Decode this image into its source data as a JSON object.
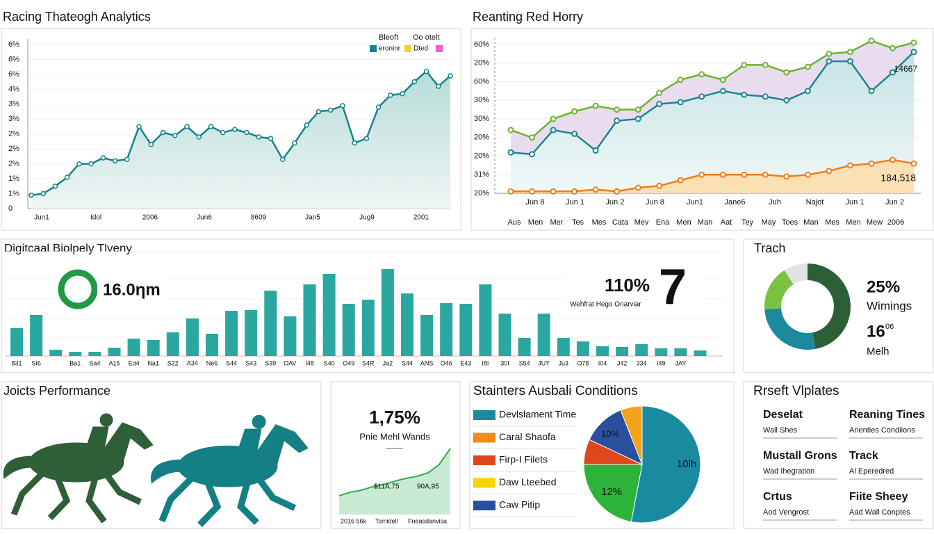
{
  "chart_data": [
    {
      "type": "line",
      "title": "Racing Thateogh Analytics",
      "legend_titles": [
        "Bleoft",
        "Oo otelt"
      ],
      "legend": [
        {
          "name": "eroninr",
          "color": "#14838c"
        },
        {
          "name": "Dted",
          "color": "#f2d61c"
        }
      ],
      "legend_extra_color": "#f25ccd",
      "y_labels": [
        "6%",
        "6%",
        "6%",
        "4%",
        "3%",
        "3%",
        "2%",
        "2%",
        "2%",
        "1%",
        "1%",
        "0"
      ],
      "x_labels": [
        "Jun1",
        "Idol",
        "2006",
        "Jun6",
        "8609",
        "Jan5",
        "Jug9",
        "2001"
      ],
      "ylim": [
        0,
        11
      ],
      "color": "#14838c",
      "values": [
        0.9,
        1.0,
        1.5,
        2.1,
        3.0,
        3.0,
        3.4,
        3.2,
        3.3,
        5.5,
        4.3,
        5.1,
        4.9,
        5.5,
        4.8,
        5.5,
        5.1,
        5.3,
        5.1,
        4.8,
        4.7,
        3.3,
        4.4,
        5.6,
        6.5,
        6.6,
        6.9,
        4.4,
        4.7,
        6.8,
        7.6,
        7.7,
        8.5,
        9.2,
        8.2,
        8.9
      ]
    },
    {
      "type": "multiline",
      "title": "Reanting Red Horry",
      "y_labels": [
        "60%",
        "20%",
        "60%",
        "30%",
        "30%",
        "20%",
        "20%",
        "31%",
        "20%"
      ],
      "x_labels": [
        "Jun 8",
        "Jun 1",
        "Jun 2",
        "Jun 8",
        "Jun1",
        "Jane6",
        "Juh",
        "Najot",
        "Jun 1",
        "Jun 2"
      ],
      "x_labels_2": [
        "Aus",
        "Men",
        "Mer",
        "Tes",
        "Mes",
        "Cata",
        "Mev",
        "Ena",
        "Men",
        "Man",
        "Aat",
        "Tey",
        "May",
        "Toes",
        "Man",
        "Mes",
        "Men",
        "Mew",
        "2006"
      ],
      "ylim": [
        0,
        8
      ],
      "series": [
        {
          "color": "#6ab42d",
          "values": [
            3.4,
            3.0,
            4.0,
            4.4,
            4.7,
            4.5,
            4.5,
            5.4,
            6.1,
            6.4,
            6.1,
            6.9,
            6.9,
            6.5,
            6.8,
            7.5,
            7.6,
            8.2,
            7.8,
            8.1
          ]
        },
        {
          "color": "#1a8593",
          "values": [
            2.2,
            2.1,
            3.4,
            3.2,
            2.3,
            3.9,
            4.0,
            4.8,
            4.9,
            5.2,
            5.5,
            5.3,
            5.2,
            5.0,
            5.5,
            7.1,
            7.1,
            5.5,
            6.5,
            7.6
          ]
        },
        {
          "color": "#ee7d1a",
          "values": [
            0.1,
            0.1,
            0.1,
            0.1,
            0.2,
            0.1,
            0.3,
            0.4,
            0.7,
            1.0,
            1.0,
            1.0,
            1.0,
            0.9,
            1.0,
            1.2,
            1.5,
            1.6,
            1.8,
            1.6
          ]
        }
      ],
      "annotations": [
        "14667",
        "184,518"
      ]
    },
    {
      "type": "bar",
      "title": "Digitcaal Biolpely Tlveny",
      "categories": [
        "831",
        "St6",
        null,
        "Ba1",
        "Sa4",
        "A15",
        "Ed4",
        "Na1",
        "S22",
        "A34",
        "Ne6",
        "S44",
        "S43",
        "S39",
        "OAV",
        "I48",
        "S40",
        "O49",
        "S4R",
        "Ja2",
        "S44",
        "ANS",
        "O46",
        "E43",
        "I8I",
        "30I",
        "S54",
        "JUY",
        "Ju3",
        "O78",
        "I04",
        "J42",
        "334",
        "I49",
        "JAY",
        null
      ],
      "values": [
        4.0,
        5.9,
        0.9,
        0.6,
        0.6,
        1.2,
        2.5,
        2.3,
        3.4,
        5.4,
        3.2,
        6.5,
        6.6,
        9.4,
        5.7,
        10.3,
        11.8,
        7.5,
        8.1,
        12.5,
        9.0,
        5.9,
        7.6,
        7.5,
        10.3,
        6.1,
        2.6,
        6.1,
        2.6,
        2.1,
        1.4,
        1.3,
        1.7,
        1.1,
        1.1,
        0.8
      ],
      "color": "#2aa8a0",
      "ylim": [
        0,
        15
      ],
      "kpi": [
        "16.0ηm",
        "110%",
        "7",
        "Wehfrat Hego Onarviar"
      ]
    },
    {
      "type": "donut",
      "title": "Trach",
      "values": [
        47,
        27,
        17,
        9
      ],
      "colors": [
        "#2d5f36",
        "#1a8a9c",
        "#7cc142",
        "#e2e2e2"
      ],
      "texts": [
        "25%",
        "Wimings",
        "16",
        "06",
        "Melh"
      ]
    },
    {
      "type": "area",
      "title": "1,75%",
      "subtitle": "Pnie Mehl Wands",
      "values": [
        2.7,
        3.2,
        3.5,
        4.0,
        4.3,
        4.8,
        5.2,
        5.5,
        6.0,
        7.2,
        9.5
      ],
      "ylim": [
        0,
        10
      ],
      "color": "#2fae4f",
      "annotations": [
        "$11A,75",
        "90A,95"
      ],
      "x_labels": [
        "2016 56k",
        "Tcmidell",
        "Fneasdanvisa"
      ]
    },
    {
      "type": "pie",
      "title": "Stainters Ausbali Conditions",
      "legend": [
        {
          "name": "Devlslament Time",
          "color": "#1a8aa0"
        },
        {
          "name": "Caral Shaofa",
          "color": "#f08c1a"
        },
        {
          "name": "Firp-I Filets",
          "color": "#e0461c"
        },
        {
          "name": "Daw Lteebed",
          "color": "#f2d600"
        },
        {
          "name": "Caw Pitip",
          "color": "#2a4f9e"
        }
      ],
      "values": [
        53,
        22,
        7,
        12,
        6
      ],
      "colors": [
        "#1a8aa0",
        "#2db33a",
        "#e0461c",
        "#2a4f9e",
        "#f5a11b"
      ],
      "annotations": [
        "10lh",
        "12%",
        "10%"
      ]
    }
  ],
  "performance": {
    "title": "Joicts Performance"
  },
  "templates": {
    "title": "Rrseft Vlplates",
    "items": [
      {
        "title": "Deselat",
        "sub": "Wall Shes"
      },
      {
        "title": "Reaning Tines",
        "sub": "Anenties Condiions"
      },
      {
        "title": "Mustall Grons",
        "sub": "Wad Ihegration"
      },
      {
        "title": "Track",
        "sub": "Al Eperedred"
      },
      {
        "title": "Crtus",
        "sub": "Aod Vengrost"
      },
      {
        "title": "Fiite Sheey",
        "sub": "Aad Wall Conptes"
      }
    ]
  }
}
